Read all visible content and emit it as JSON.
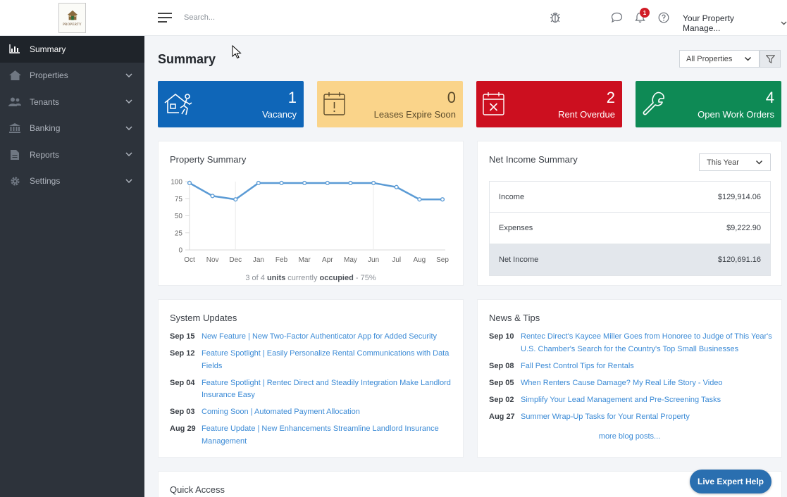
{
  "sidebar": {
    "logo_text": "PROPERTY",
    "items": [
      {
        "label": "Summary",
        "icon": "chart-icon",
        "active": true
      },
      {
        "label": "Properties",
        "icon": "home-icon"
      },
      {
        "label": "Tenants",
        "icon": "users-icon"
      },
      {
        "label": "Banking",
        "icon": "bank-icon"
      },
      {
        "label": "Reports",
        "icon": "document-icon"
      },
      {
        "label": "Settings",
        "icon": "gear-icon"
      }
    ]
  },
  "topbar": {
    "search_placeholder": "Search...",
    "notification_count": "1",
    "account_label": "Your Property Manage..."
  },
  "page": {
    "title": "Summary",
    "property_filter": "All Properties"
  },
  "cards": {
    "vacancy": {
      "count": "1",
      "label": "Vacancy"
    },
    "leases": {
      "count": "0",
      "label": "Leases Expire Soon"
    },
    "rent": {
      "count": "2",
      "label": "Rent Overdue"
    },
    "work": {
      "count": "4",
      "label": "Open Work Orders"
    }
  },
  "property_summary": {
    "title": "Property Summary",
    "occupancy": {
      "pre": "3 of 4 ",
      "units": "units",
      "mid": " currently ",
      "occupied": "occupied",
      "post": " - 75%"
    }
  },
  "chart_data": {
    "type": "line",
    "categories": [
      "Oct",
      "Nov",
      "Dec",
      "Jan",
      "Feb",
      "Mar",
      "Apr",
      "May",
      "Jun",
      "Jul",
      "Aug",
      "Sep"
    ],
    "values": [
      98,
      79,
      74,
      98,
      98,
      98,
      98,
      98,
      98,
      92,
      74,
      74
    ],
    "ylim": [
      0,
      100
    ],
    "yticks": [
      "100",
      "75",
      "50",
      "25",
      "0"
    ],
    "line_color": "#5b9bd5"
  },
  "net_income": {
    "title": "Net Income Summary",
    "period": "This Year",
    "rows": [
      {
        "label": "Income",
        "value": "$129,914.06"
      },
      {
        "label": "Expenses",
        "value": "$9,222.90"
      },
      {
        "label": "Net Income",
        "value": "$120,691.16"
      }
    ]
  },
  "system_updates": {
    "title": "System Updates",
    "items": [
      {
        "date": "Sep 15",
        "text": "New Feature | New Two-Factor Authenticator App for Added Security"
      },
      {
        "date": "Sep 12",
        "text": "Feature Spotlight | Easily Personalize Rental Communications with Data Fields"
      },
      {
        "date": "Sep 04",
        "text": "Feature Spotlight | Rentec Direct and Steadily Integration Make Landlord Insurance Easy"
      },
      {
        "date": "Sep 03",
        "text": "Coming Soon | Automated Payment Allocation"
      },
      {
        "date": "Aug 29",
        "text": "Feature Update | New Enhancements Streamline Landlord Insurance Management"
      }
    ]
  },
  "news": {
    "title": "News & Tips",
    "items": [
      {
        "date": "Sep 10",
        "text": "Rentec Direct's Kaycee Miller Goes from Honoree to Judge of This Year's U.S. Chamber's Search for the Country's Top Small Businesses"
      },
      {
        "date": "Sep 08",
        "text": "Fall Pest Control Tips for Rentals"
      },
      {
        "date": "Sep 05",
        "text": "When Renters Cause Damage? My Real Life Story - Video"
      },
      {
        "date": "Sep 02",
        "text": "Simplify Your Lead Management and Pre-Screening Tasks"
      },
      {
        "date": "Aug 27",
        "text": "Summer Wrap-Up Tasks for Your Rental Property"
      }
    ],
    "more_label": "more blog posts..."
  },
  "quick_access": {
    "title": "Quick Access"
  },
  "live_help_label": "Live Expert Help"
}
